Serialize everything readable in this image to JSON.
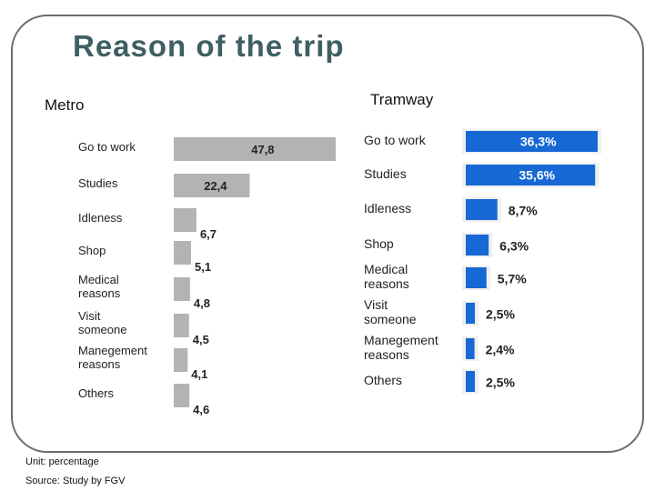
{
  "page": {
    "title": "Reason of the trip"
  },
  "notes": {
    "unit": "Unit: percentage",
    "source": "Source: Study by FGV"
  },
  "colors": {
    "title": "#3e5f63",
    "metro_bar": "#b3b3b3",
    "tram_bar": "#1768d4",
    "tram_shadow": "#efefef"
  },
  "chart_data": [
    {
      "type": "bar",
      "orientation": "horizontal",
      "title": "Metro",
      "categories": [
        [
          "Go to work"
        ],
        [
          "Studies"
        ],
        [
          "Idleness"
        ],
        [
          "Shop"
        ],
        [
          "Medical",
          "reasons"
        ],
        [
          "Visit",
          "someone"
        ],
        [
          "Manegement",
          "reasons"
        ],
        [
          "Others"
        ]
      ],
      "values": [
        47.8,
        22.4,
        6.7,
        5.1,
        4.8,
        4.5,
        4.1,
        4.6
      ],
      "value_labels": [
        "47,8",
        "22,4",
        "6,7",
        "5,1",
        "4,8",
        "4,5",
        "4,1",
        "4,6"
      ],
      "xlim": [
        0,
        47.8
      ]
    },
    {
      "type": "bar",
      "orientation": "horizontal",
      "title": "Tramway",
      "categories": [
        [
          "Go to work"
        ],
        [
          "Studies"
        ],
        [
          "Idleness"
        ],
        [
          "Shop"
        ],
        [
          "Medical",
          "reasons"
        ],
        [
          "Visit",
          "someone"
        ],
        [
          "Manegement",
          "reasons"
        ],
        [
          "Others"
        ]
      ],
      "values": [
        36.3,
        35.6,
        8.7,
        6.3,
        5.7,
        2.5,
        2.4,
        2.5
      ],
      "value_labels": [
        "36,3%",
        "35,6%",
        "8,7%",
        "6,3%",
        "5,7%",
        "2,5%",
        "2,4%",
        "2,5%"
      ],
      "xlim": [
        0,
        36.3
      ]
    }
  ]
}
